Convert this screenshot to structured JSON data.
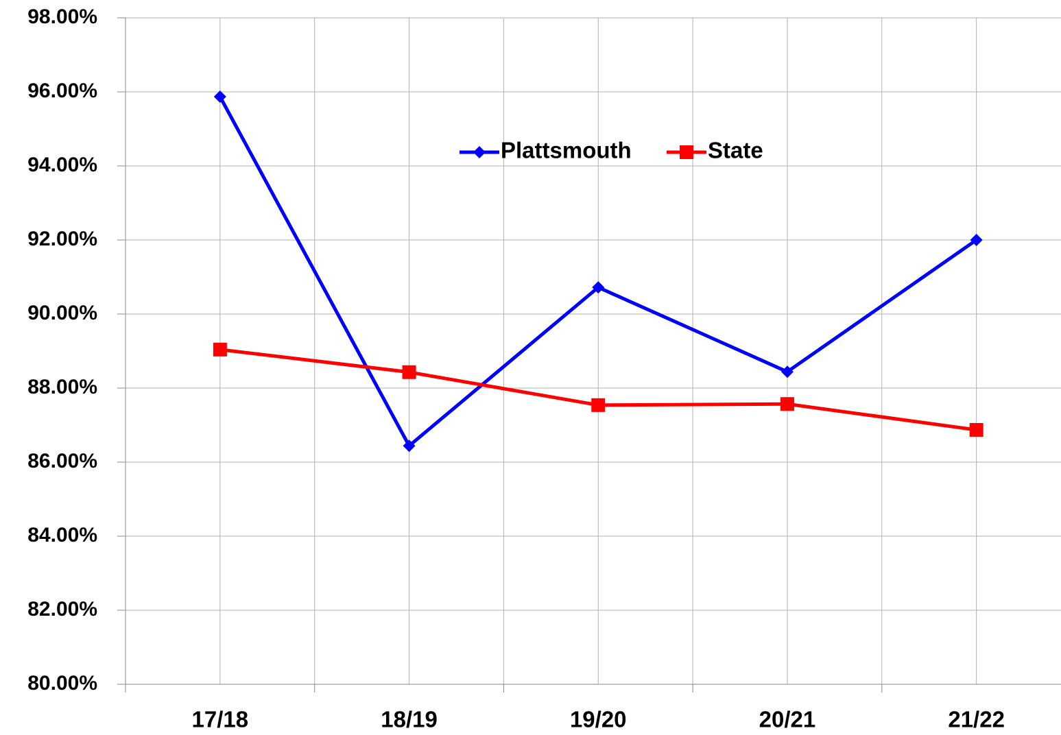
{
  "chart_data": {
    "type": "line",
    "categories": [
      "17/18",
      "18/19",
      "19/20",
      "20/21",
      "21/22"
    ],
    "series": [
      {
        "name": "Plattsmouth",
        "color": "#0000ff",
        "marker": "diamond",
        "values": [
          95.87,
          86.44,
          90.72,
          88.44,
          92.0
        ]
      },
      {
        "name": "State",
        "color": "#ff0000",
        "marker": "square",
        "values": [
          89.04,
          88.43,
          87.54,
          87.57,
          86.87
        ]
      }
    ],
    "ylim": [
      80,
      98
    ],
    "yticks": [
      {
        "value": 80,
        "label": "80.00%"
      },
      {
        "value": 82,
        "label": "82.00%"
      },
      {
        "value": 84,
        "label": "84.00%"
      },
      {
        "value": 86,
        "label": "86.00%"
      },
      {
        "value": 88,
        "label": "88.00%"
      },
      {
        "value": 90,
        "label": "90.00%"
      },
      {
        "value": 92,
        "label": "92.00%"
      },
      {
        "value": 94,
        "label": "94.00%"
      },
      {
        "value": 96,
        "label": "96.00%"
      },
      {
        "value": 98,
        "label": "98.00%"
      }
    ],
    "grid": true,
    "legend": "top"
  }
}
